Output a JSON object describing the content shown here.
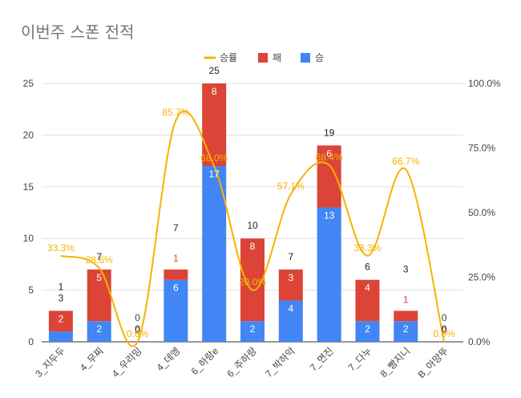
{
  "chart_data": {
    "type": "bar",
    "stacked": true,
    "title": "이번주 스폰 전적",
    "categories": [
      "3_지두두",
      "4_무찌",
      "4_우리밍",
      "4_데엥",
      "6_하랑e",
      "6_주하랑",
      "7_박하악",
      "7_면진",
      "7_다누",
      "8_빵지니",
      "B_아망뚜"
    ],
    "series": [
      {
        "name": "승",
        "values": [
          1,
          2,
          0,
          6,
          17,
          2,
          4,
          13,
          2,
          2,
          0
        ],
        "color": "#4285f4"
      },
      {
        "name": "패",
        "values": [
          2,
          5,
          0,
          1,
          8,
          8,
          3,
          6,
          4,
          1,
          0
        ],
        "color": "#db4437"
      }
    ],
    "totals": [
      3,
      7,
      0,
      7,
      25,
      10,
      7,
      19,
      6,
      3,
      0
    ],
    "line_series": {
      "name": "승률",
      "values": [
        33.3,
        28.6,
        0.0,
        85.7,
        68.0,
        20.0,
        57.1,
        68.4,
        33.3,
        66.7,
        0.0
      ],
      "labels": [
        "33.3%",
        "28.6%",
        "0.0%",
        "85.7%",
        "68.0%",
        "20.0%",
        "57.1%",
        "68.4%",
        "33.3%",
        "66.7%",
        "0.0%"
      ],
      "color": "#f4b400"
    },
    "y_left": {
      "min": 0,
      "max": 25,
      "ticks": [
        0,
        5,
        10,
        15,
        20,
        25
      ]
    },
    "y_right": {
      "min": 0,
      "max": 100,
      "ticks": [
        0,
        25,
        50,
        75,
        100
      ],
      "tick_labels": [
        "0.0%",
        "25.0%",
        "50.0%",
        "75.0%",
        "100.0%"
      ]
    },
    "legend": {
      "position": "top-center",
      "items": [
        "승률",
        "패",
        "승"
      ]
    },
    "grid": true
  }
}
